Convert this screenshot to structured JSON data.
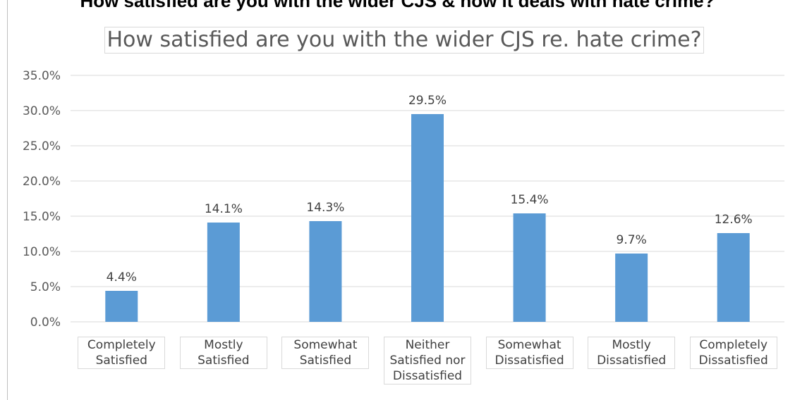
{
  "page_heading": "How satisfied are you with the wider CJS & how it deals with hate crime?",
  "chart_data": {
    "type": "bar",
    "title": "How satisfied are you with the wider CJS re. hate crime?",
    "categories": [
      "Completely Satisfied",
      "Mostly Satisfied",
      "Somewhat Satisfied",
      "Neither Satisfied nor Dissatisfied",
      "Somewhat Dissatisfied",
      "Mostly Dissatisfied",
      "Completely Dissatisfied"
    ],
    "values": [
      4.4,
      14.1,
      14.3,
      29.5,
      15.4,
      9.7,
      12.6
    ],
    "data_labels": [
      "4.4%",
      "14.1%",
      "14.3%",
      "29.5%",
      "15.4%",
      "9.7%",
      "12.6%"
    ],
    "yticks": [
      "0.0%",
      "5.0%",
      "10.0%",
      "15.0%",
      "20.0%",
      "25.0%",
      "30.0%",
      "35.0%"
    ],
    "ylim": [
      0,
      35
    ],
    "xlabel": "",
    "ylabel": "",
    "grid": true,
    "legend": "none",
    "bar_color": "#5b9bd5"
  }
}
